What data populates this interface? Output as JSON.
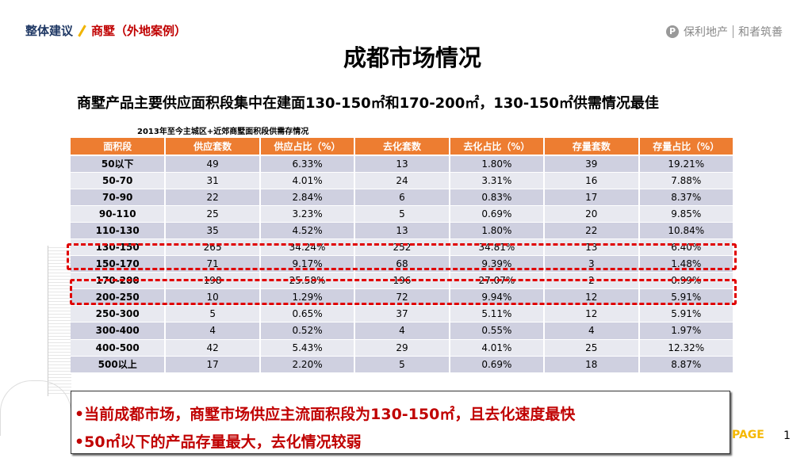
{
  "breadcrumb": {
    "section": "整体建议",
    "subsection": "商墅（外地案例）"
  },
  "logo": {
    "brand": "保利地产",
    "slogan": "和者筑善"
  },
  "title": "成都市场情况",
  "subtitle": "商墅产品主要供应面积段集中在建面130-150㎡和170-200㎡，130-150㎡供需情况最佳",
  "table": {
    "caption": "2013年至今主城区+近郊商墅面积段供需存情况",
    "headers": [
      "面积段",
      "供应套数",
      "供应占比（%）",
      "去化套数",
      "去化占比（%）",
      "存量套数",
      "存量占比（%）"
    ],
    "rows": [
      [
        "50以下",
        "49",
        "6.33%",
        "13",
        "1.80%",
        "39",
        "19.21%"
      ],
      [
        "50-70",
        "31",
        "4.01%",
        "24",
        "3.31%",
        "16",
        "7.88%"
      ],
      [
        "70-90",
        "22",
        "2.84%",
        "6",
        "0.83%",
        "17",
        "8.37%"
      ],
      [
        "90-110",
        "25",
        "3.23%",
        "5",
        "0.69%",
        "20",
        "9.85%"
      ],
      [
        "110-130",
        "35",
        "4.52%",
        "13",
        "1.80%",
        "22",
        "10.84%"
      ],
      [
        "130-150",
        "265",
        "34.24%",
        "252",
        "34.81%",
        "13",
        "6.40%"
      ],
      [
        "150-170",
        "71",
        "9.17%",
        "68",
        "9.39%",
        "3",
        "1.48%"
      ],
      [
        "170-200",
        "198",
        "25.58%",
        "196",
        "27.07%",
        "2",
        "0.99%"
      ],
      [
        "200-250",
        "10",
        "1.29%",
        "72",
        "9.94%",
        "12",
        "5.91%"
      ],
      [
        "250-300",
        "5",
        "0.65%",
        "37",
        "5.11%",
        "12",
        "5.91%"
      ],
      [
        "300-400",
        "4",
        "0.52%",
        "4",
        "0.55%",
        "4",
        "1.97%"
      ],
      [
        "400-500",
        "42",
        "5.43%",
        "29",
        "4.01%",
        "25",
        "12.32%"
      ],
      [
        "500以上",
        "17",
        "2.20%",
        "5",
        "0.69%",
        "18",
        "8.87%"
      ]
    ],
    "highlighted_rows": [
      "130-150",
      "170-200"
    ]
  },
  "notes": [
    "•当前成都市场，商墅市场供应主流面积段为130-150㎡，且去化速度最快",
    "•50㎡以下的产品存量最大，去化情况较弱"
  ],
  "footer": {
    "page_label": "PAGE",
    "page_number": "1"
  },
  "colors": {
    "header": "#ed7d31",
    "highlight": "#e00000",
    "note_text": "#c00000",
    "accent": "#f5b800"
  }
}
